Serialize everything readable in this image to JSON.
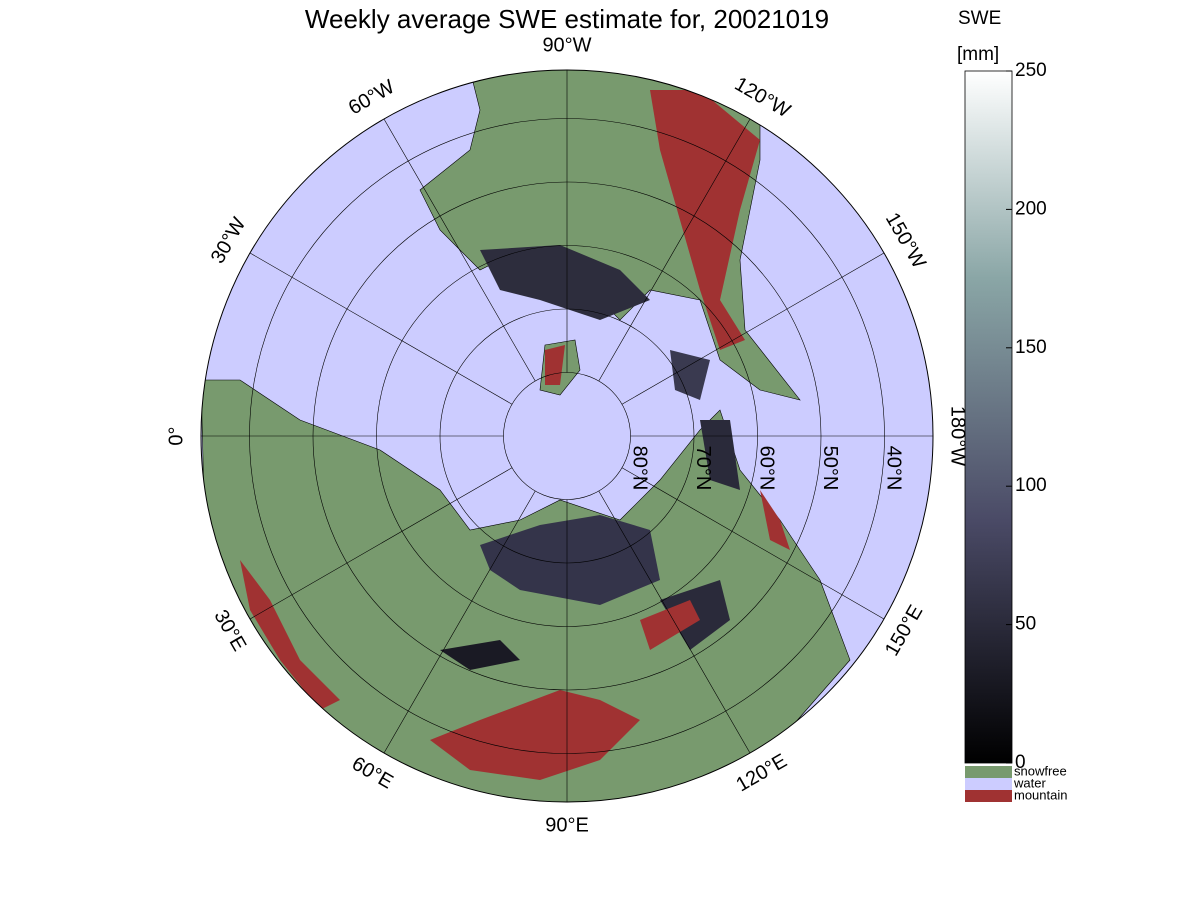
{
  "title": "Weekly average SWE estimate for, 20021019",
  "meridians": [
    {
      "value": -90,
      "label": "90°W"
    },
    {
      "value": -60,
      "label": "60°W"
    },
    {
      "value": -30,
      "label": "30°W"
    },
    {
      "value": 0,
      "label": "0°"
    },
    {
      "value": 30,
      "label": "30°E"
    },
    {
      "value": 60,
      "label": "60°E"
    },
    {
      "value": 90,
      "label": "90°E"
    },
    {
      "value": 120,
      "label": "120°E"
    },
    {
      "value": 150,
      "label": "150°E"
    },
    {
      "value": -180,
      "label": "180°W"
    },
    {
      "value": -150,
      "label": "150°W"
    },
    {
      "value": -120,
      "label": "120°W"
    }
  ],
  "parallels": [
    {
      "value": 80,
      "label": "80°N"
    },
    {
      "value": 70,
      "label": "70°N"
    },
    {
      "value": 60,
      "label": "60°N"
    },
    {
      "value": 50,
      "label": "50°N"
    },
    {
      "value": 40,
      "label": "40°N"
    }
  ],
  "colorbar": {
    "label": "SWE",
    "unit": "[mm]",
    "range": [
      0,
      250
    ],
    "ticks": [
      0,
      50,
      100,
      150,
      200,
      250
    ]
  },
  "legend": [
    {
      "label": "snowfree",
      "color": "#789a6e"
    },
    {
      "label": "water",
      "color": "#ccccff"
    },
    {
      "label": "mountain",
      "color": "#a03232"
    }
  ]
}
